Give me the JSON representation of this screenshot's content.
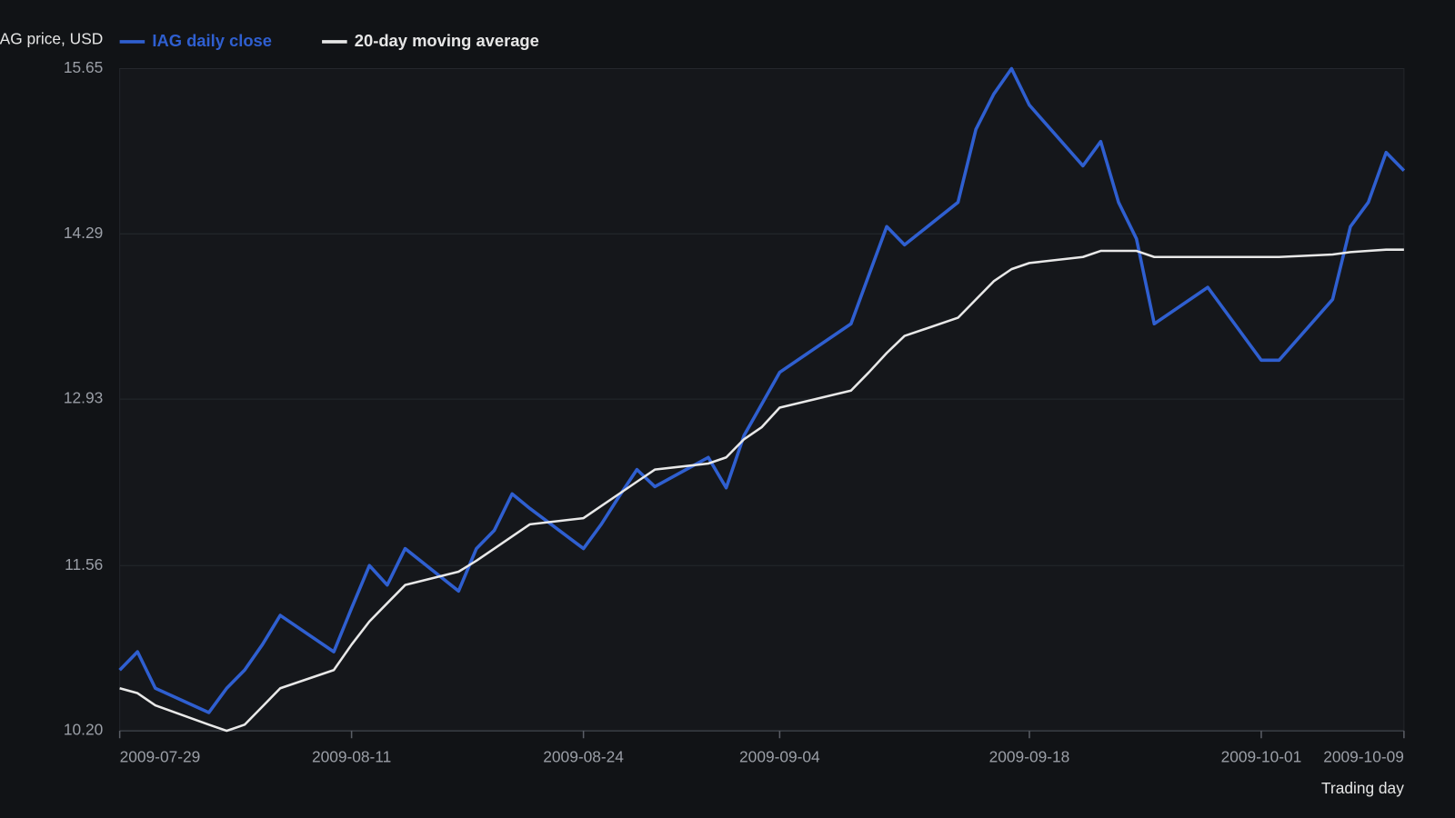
{
  "chart_data": {
    "type": "line",
    "y_label": "IAG price, USD",
    "x_label": "Trading day",
    "x": [
      "2009-07-29",
      "2009-07-30",
      "2009-07-31",
      "2009-08-03",
      "2009-08-04",
      "2009-08-05",
      "2009-08-06",
      "2009-08-07",
      "2009-08-10",
      "2009-08-11",
      "2009-08-12",
      "2009-08-13",
      "2009-08-14",
      "2009-08-17",
      "2009-08-18",
      "2009-08-19",
      "2009-08-20",
      "2009-08-21",
      "2009-08-24",
      "2009-08-25",
      "2009-08-26",
      "2009-08-27",
      "2009-08-28",
      "2009-08-31",
      "2009-09-01",
      "2009-09-02",
      "2009-09-03",
      "2009-09-04",
      "2009-09-08",
      "2009-09-09",
      "2009-09-10",
      "2009-09-11",
      "2009-09-14",
      "2009-09-15",
      "2009-09-16",
      "2009-09-17",
      "2009-09-18",
      "2009-09-21",
      "2009-09-22",
      "2009-09-23",
      "2009-09-24",
      "2009-09-25",
      "2009-09-28",
      "2009-10-01",
      "2009-10-02",
      "2009-10-05",
      "2009-10-06",
      "2009-10-07",
      "2009-10-08",
      "2009-10-09"
    ],
    "series": [
      {
        "name": "IAG daily close",
        "color": "#2f5fd0",
        "values": [
          10.7,
          10.85,
          10.55,
          10.35,
          10.55,
          10.7,
          10.91,
          11.15,
          10.85,
          11.21,
          11.56,
          11.4,
          11.7,
          11.35,
          11.7,
          11.85,
          12.15,
          12.03,
          11.7,
          11.9,
          12.13,
          12.35,
          12.21,
          12.45,
          12.2,
          12.63,
          12.89,
          13.15,
          13.55,
          13.95,
          14.35,
          14.2,
          14.55,
          15.15,
          15.44,
          15.65,
          15.35,
          14.85,
          15.05,
          14.55,
          14.25,
          13.55,
          13.85,
          13.25,
          13.25,
          13.75,
          14.35,
          14.55,
          14.96,
          14.81
        ]
      },
      {
        "name": "20-day moving average",
        "color": "#e8e8e8",
        "values": [
          10.55,
          10.51,
          10.41,
          10.25,
          10.2,
          10.25,
          10.4,
          10.55,
          10.7,
          10.91,
          11.1,
          11.25,
          11.4,
          11.51,
          11.6,
          11.7,
          11.8,
          11.9,
          11.95,
          12.05,
          12.15,
          12.25,
          12.35,
          12.4,
          12.45,
          12.6,
          12.7,
          12.86,
          13.0,
          13.15,
          13.31,
          13.45,
          13.6,
          13.75,
          13.9,
          14.0,
          14.05,
          14.1,
          14.15,
          14.15,
          14.15,
          14.1,
          14.1,
          14.1,
          14.1,
          14.12,
          14.14,
          14.15,
          14.16,
          14.16
        ]
      }
    ],
    "xlim": [
      "2009-07-29",
      "2009-10-09"
    ],
    "xticks": [
      "2009-07-29",
      "2009-08-11",
      "2009-08-24",
      "2009-09-04",
      "2009-09-18",
      "2009-10-01",
      "2009-10-09"
    ],
    "ylim": [
      10.2,
      15.65
    ],
    "yticks": [
      {
        "value": 10.2,
        "label": "10.20"
      },
      11.56,
      12.93,
      14.29,
      15.65
    ],
    "grid": true
  }
}
